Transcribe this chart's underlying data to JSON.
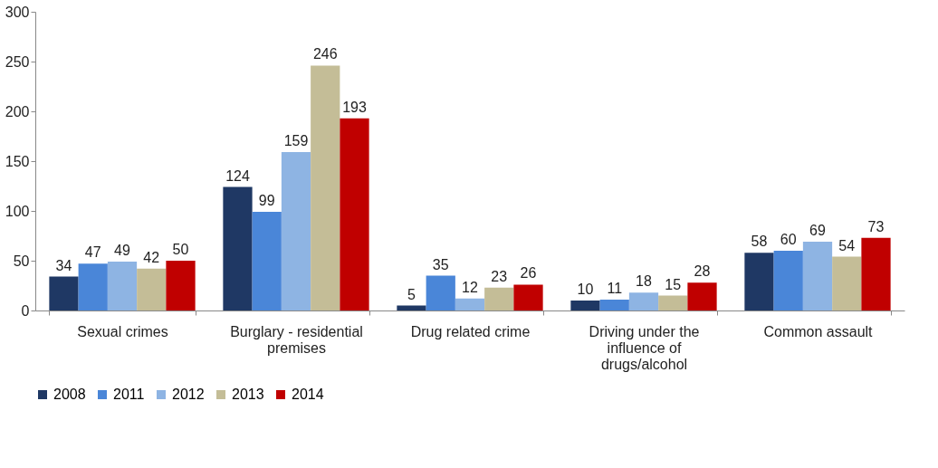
{
  "chart_data": {
    "type": "bar",
    "categories": [
      "Sexual crimes",
      "Burglary - residential premises",
      "Drug related crime",
      "Driving under the influence of drugs/alcohol",
      "Common assault"
    ],
    "series": [
      {
        "name": "2008",
        "color": "#1f3864",
        "values": [
          34,
          124,
          5,
          10,
          58
        ]
      },
      {
        "name": "2011",
        "color": "#4a86d8",
        "values": [
          47,
          99,
          35,
          11,
          60
        ]
      },
      {
        "name": "2012",
        "color": "#8eb4e3",
        "values": [
          49,
          159,
          12,
          18,
          69
        ]
      },
      {
        "name": "2013",
        "color": "#c4bd97",
        "values": [
          42,
          246,
          23,
          15,
          54
        ]
      },
      {
        "name": "2014",
        "color": "#c00000",
        "values": [
          50,
          193,
          26,
          28,
          73
        ]
      }
    ],
    "ylim": [
      0,
      300
    ],
    "yticks": [
      0,
      50,
      100,
      150,
      200,
      250,
      300
    ],
    "grid": false,
    "legend": "bottom",
    "data_labels": true
  }
}
